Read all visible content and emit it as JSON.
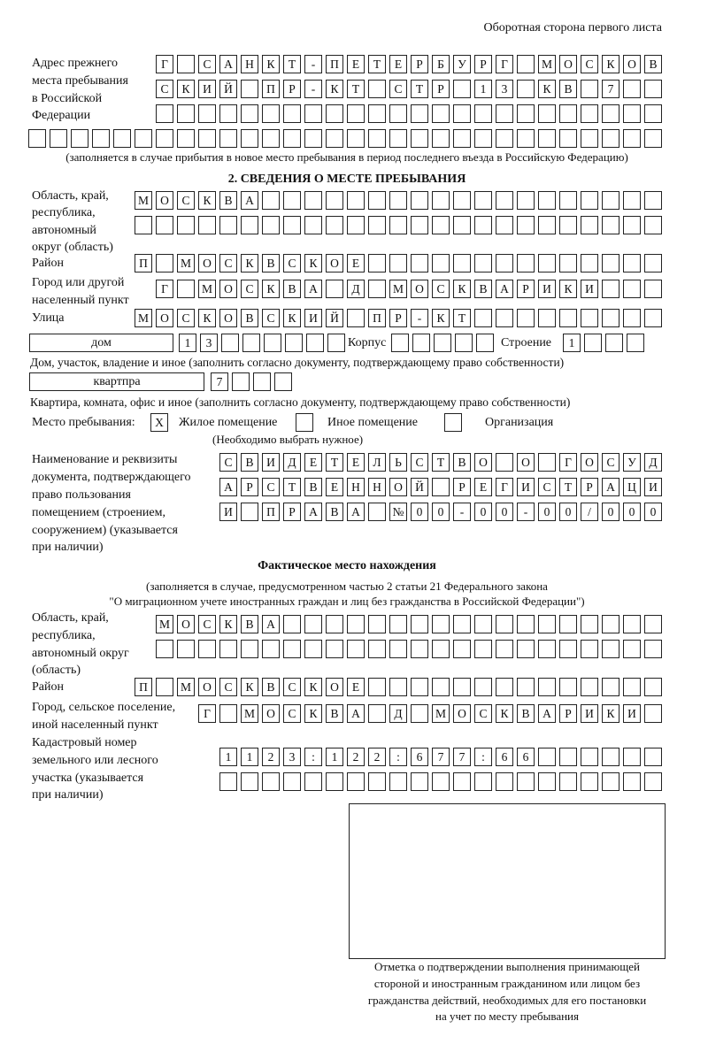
{
  "header": "Оборотная сторона первого листа",
  "prev_address": {
    "label": [
      "Адрес прежнего",
      "места пребывания",
      "в Российской",
      "Федерации"
    ],
    "rows": [
      [
        "Г",
        "",
        "С",
        "А",
        "Н",
        "К",
        "Т",
        "-",
        "П",
        "Е",
        "Т",
        "Е",
        "Р",
        "Б",
        "У",
        "Р",
        "Г",
        "",
        "М",
        "О",
        "С",
        "К",
        "О",
        "В"
      ],
      [
        "С",
        "К",
        "И",
        "Й",
        "",
        "П",
        "Р",
        "-",
        "К",
        "Т",
        "",
        "С",
        "Т",
        "Р",
        "",
        "1",
        "3",
        "",
        "К",
        "В",
        "",
        "7",
        "",
        ""
      ],
      [
        "",
        "",
        "",
        "",
        "",
        "",
        "",
        "",
        "",
        "",
        "",
        "",
        "",
        "",
        "",
        "",
        "",
        "",
        "",
        "",
        "",
        "",
        "",
        ""
      ],
      [
        "",
        "",
        "",
        "",
        "",
        "",
        "",
        "",
        "",
        "",
        "",
        "",
        "",
        "",
        "",
        "",
        "",
        "",
        "",
        "",
        "",
        "",
        "",
        "",
        "",
        "",
        "",
        "",
        "",
        ""
      ]
    ],
    "note": "(заполняется в случае прибытия в новое место пребывания в период последнего въезда в Российскую Федерацию)"
  },
  "section2": {
    "title": "2. СВЕДЕНИЯ О МЕСТЕ ПРЕБЫВАНИЯ",
    "region_label": [
      "Область, край,",
      "республика,",
      "автономный",
      "округ (область)"
    ],
    "region_rows": [
      [
        "М",
        "О",
        "С",
        "К",
        "В",
        "А",
        "",
        "",
        "",
        "",
        "",
        "",
        "",
        "",
        "",
        "",
        "",
        "",
        "",
        "",
        "",
        "",
        "",
        "",
        ""
      ],
      [
        "",
        "",
        "",
        "",
        "",
        "",
        "",
        "",
        "",
        "",
        "",
        "",
        "",
        "",
        "",
        "",
        "",
        "",
        "",
        "",
        "",
        "",
        "",
        "",
        ""
      ]
    ],
    "district_label": "Район",
    "district_row": [
      "П",
      "",
      "М",
      "О",
      "С",
      "К",
      "В",
      "С",
      "К",
      "О",
      "Е",
      "",
      "",
      "",
      "",
      "",
      "",
      "",
      "",
      "",
      "",
      "",
      "",
      "",
      ""
    ],
    "city_label": [
      "Город или другой",
      "населенный пункт"
    ],
    "city_row": [
      "Г",
      "",
      "М",
      "О",
      "С",
      "К",
      "В",
      "А",
      "",
      "Д",
      "",
      "М",
      "О",
      "С",
      "К",
      "В",
      "А",
      "Р",
      "И",
      "К",
      "И",
      "",
      "",
      ""
    ],
    "street_label": "Улица",
    "street_row": [
      "М",
      "О",
      "С",
      "К",
      "О",
      "В",
      "С",
      "К",
      "И",
      "Й",
      "",
      "П",
      "Р",
      "-",
      "К",
      "Т",
      "",
      "",
      "",
      "",
      "",
      "",
      "",
      "",
      ""
    ],
    "house_type": "дом",
    "house_cells": [
      "1",
      "3",
      "",
      "",
      "",
      "",
      "",
      ""
    ],
    "korpus_label": "Корпус",
    "korpus_cells": [
      "",
      "",
      "",
      "",
      ""
    ],
    "stroenie_label": "Строение",
    "stroenie_cells": [
      "1",
      "",
      "",
      ""
    ],
    "house_note": "Дом, участок, владение и иное (заполнить согласно документу, подтверждающему право собственности)",
    "apt_type": "квартпра",
    "apt_cells": [
      "7",
      "",
      "",
      ""
    ],
    "apt_note": "Квартира, комната, офис и иное (заполнить согласно документу, подтверждающему право собственности)",
    "stay_label": "Место пребывания:",
    "stay_options": [
      {
        "label": "Жилое помещение",
        "mark": "X"
      },
      {
        "label": "Иное помещение",
        "mark": ""
      },
      {
        "label": "Организация",
        "mark": ""
      }
    ],
    "stay_note": "(Необходимо выбрать нужное)",
    "doc_label": [
      "Наименование и реквизиты",
      "документа, подтверждающего",
      "право пользования",
      "помещением (строением,",
      "сооружением) (указывается",
      "при наличии)"
    ],
    "doc_rows": [
      [
        "С",
        "В",
        "И",
        "Д",
        "Е",
        "Т",
        "Е",
        "Л",
        "Ь",
        "С",
        "Т",
        "В",
        "О",
        "",
        "О",
        "",
        "Г",
        "О",
        "С",
        "У",
        "Д"
      ],
      [
        "А",
        "Р",
        "С",
        "Т",
        "В",
        "Е",
        "Н",
        "Н",
        "О",
        "Й",
        "",
        "Р",
        "Е",
        "Г",
        "И",
        "С",
        "Т",
        "Р",
        "А",
        "Ц",
        "И"
      ],
      [
        "И",
        "",
        "П",
        "Р",
        "А",
        "В",
        "А",
        "",
        "№",
        "0",
        "0",
        "-",
        "0",
        "0",
        "-",
        "0",
        "0",
        "/",
        "0",
        "0",
        "0"
      ]
    ]
  },
  "actual": {
    "title": "Фактическое место нахождения",
    "note": [
      "(заполняется в случае, предусмотренном частью 2 статьи 21 Федерального закона",
      "\"О миграционном учете иностранных граждан и лиц без гражданства в Российской Федерации\")"
    ],
    "region_label": [
      "Область, край,",
      "республика,",
      "автономный округ",
      "(область)"
    ],
    "region_rows": [
      [
        "М",
        "О",
        "С",
        "К",
        "В",
        "А",
        "",
        "",
        "",
        "",
        "",
        "",
        "",
        "",
        "",
        "",
        "",
        "",
        "",
        "",
        "",
        "",
        "",
        ""
      ],
      [
        "",
        "",
        "",
        "",
        "",
        "",
        "",
        "",
        "",
        "",
        "",
        "",
        "",
        "",
        "",
        "",
        "",
        "",
        "",
        "",
        "",
        "",
        "",
        ""
      ]
    ],
    "district_label": "Район",
    "district_row": [
      "П",
      "",
      "М",
      "О",
      "С",
      "К",
      "В",
      "С",
      "К",
      "О",
      "Е",
      "",
      "",
      "",
      "",
      "",
      "",
      "",
      "",
      "",
      "",
      "",
      "",
      "",
      ""
    ],
    "city_label": [
      "Город, сельское поселение,",
      "иной населенный пункт"
    ],
    "city_row": [
      "Г",
      "",
      "М",
      "О",
      "С",
      "К",
      "В",
      "А",
      "",
      "Д",
      "",
      "М",
      "О",
      "С",
      "К",
      "В",
      "А",
      "Р",
      "И",
      "К",
      "И",
      ""
    ],
    "cadastre_label": [
      "Кадастровый номер",
      "земельного или лесного",
      "участка (указывается",
      "при наличии)"
    ],
    "cadastre_rows": [
      [
        "1",
        "1",
        "2",
        "3",
        ":",
        "1",
        "2",
        "2",
        ":",
        "6",
        "7",
        "7",
        ":",
        "6",
        "6",
        "",
        "",
        "",
        "",
        "",
        ""
      ],
      [
        "",
        "",
        "",
        "",
        "",
        "",
        "",
        "",
        "",
        "",
        "",
        "",
        "",
        "",
        "",
        "",
        "",
        "",
        "",
        "",
        ""
      ]
    ],
    "stamp_caption": [
      "Отметка о подтверждении выполнения принимающей",
      "стороной и иностранным гражданином или лицом без",
      "гражданства действий, необходимых для его постановки",
      "на учет по месту пребывания"
    ]
  }
}
